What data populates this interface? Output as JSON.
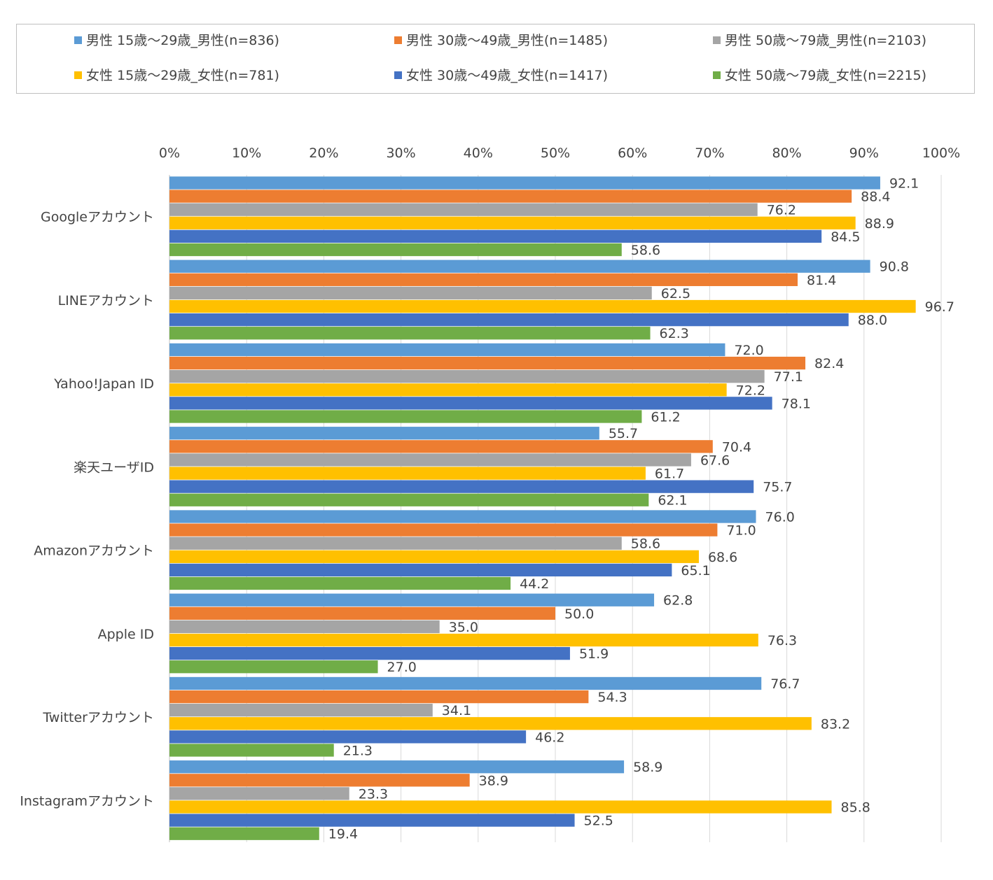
{
  "chart_data": {
    "type": "bar",
    "orientation": "horizontal",
    "legend_position": "top",
    "grid": true,
    "xlim": [
      0,
      100
    ],
    "x_ticks": [
      "0%",
      "10%",
      "20%",
      "30%",
      "40%",
      "50%",
      "60%",
      "70%",
      "80%",
      "90%",
      "100%"
    ],
    "x_tick_values": [
      0,
      10,
      20,
      30,
      40,
      50,
      60,
      70,
      80,
      90,
      100
    ],
    "categories": [
      "Googleアカウント",
      "LINEアカウント",
      "Yahoo!Japan ID",
      "楽天ユーザID",
      "Amazonアカウント",
      "Apple ID",
      "Twitterアカウント",
      "Instagramアカウント"
    ],
    "series": [
      {
        "name": "男性 15歳～29歳_男性(n=836)",
        "color": "#5b9bd5",
        "values": [
          92.1,
          90.8,
          72.0,
          55.7,
          76.0,
          62.8,
          76.7,
          58.9
        ],
        "labels": [
          "92.1",
          "90.8",
          "72.0",
          "55.7",
          "76.0",
          "62.8",
          "76.7",
          "58.9"
        ]
      },
      {
        "name": "男性 30歳～49歳_男性(n=1485)",
        "color": "#ed7d31",
        "values": [
          88.4,
          81.4,
          82.4,
          70.4,
          71.0,
          50.0,
          54.3,
          38.9
        ],
        "labels": [
          "88.4",
          "81.4",
          "82.4",
          "70.4",
          "71.0",
          "50.0",
          "54.3",
          "38.9"
        ]
      },
      {
        "name": "男性 50歳～79歳_男性(n=2103)",
        "color": "#a5a5a5",
        "values": [
          76.2,
          62.5,
          77.1,
          67.6,
          58.6,
          35.0,
          34.1,
          23.3
        ],
        "labels": [
          "76.2",
          "62.5",
          "77.1",
          "67.6",
          "58.6",
          "35.0",
          "34.1",
          "23.3"
        ]
      },
      {
        "name": "女性 15歳～29歳_女性(n=781)",
        "color": "#ffc000",
        "values": [
          88.9,
          96.7,
          72.2,
          61.7,
          68.6,
          76.3,
          83.2,
          85.8
        ],
        "labels": [
          "88.9",
          "96.7",
          "72.2",
          "61.7",
          "68.6",
          "76.3",
          "83.2",
          "85.8"
        ]
      },
      {
        "name": "女性 30歳～49歳_女性(n=1417)",
        "color": "#4472c4",
        "values": [
          84.5,
          88.0,
          78.1,
          75.7,
          65.1,
          51.9,
          46.2,
          52.5
        ],
        "labels": [
          "84.5",
          "88.0",
          "78.1",
          "75.7",
          "65.1",
          "51.9",
          "46.2",
          "52.5"
        ]
      },
      {
        "name": "女性 50歳～79歳_女性(n=2215)",
        "color": "#70ad47",
        "values": [
          58.6,
          62.3,
          61.2,
          62.1,
          44.2,
          27.0,
          21.3,
          19.4
        ],
        "labels": [
          "58.6",
          "62.3",
          "61.2",
          "62.1",
          "44.2",
          "27.0",
          "21.3",
          "19.4"
        ]
      }
    ]
  }
}
